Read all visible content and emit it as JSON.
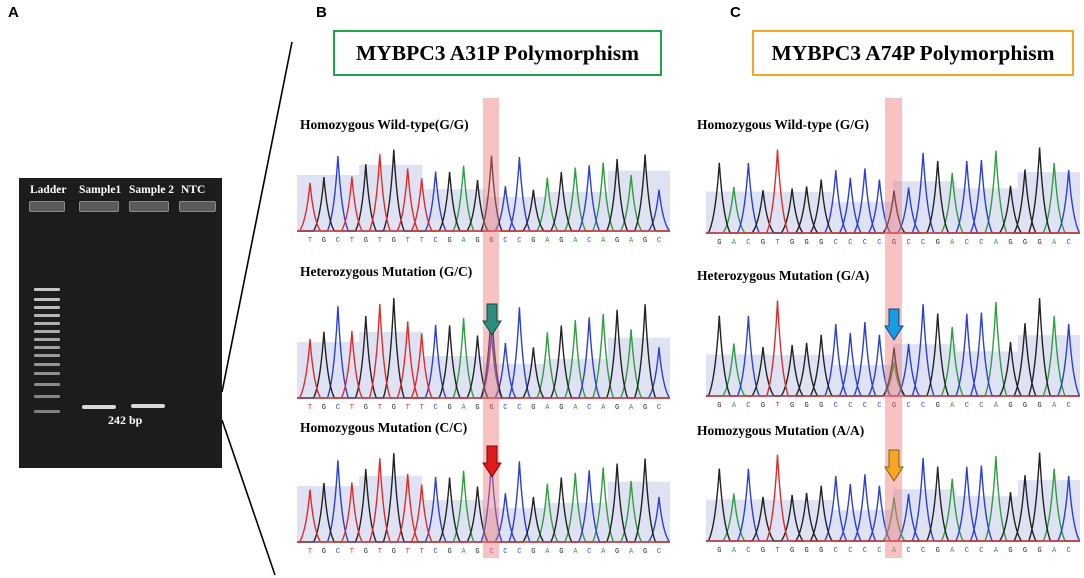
{
  "panels": {
    "a": "A",
    "b": "B",
    "c": "C"
  },
  "gel": {
    "lanes": {
      "ladder": "Ladder",
      "sample1": "Sample1",
      "sample2": "Sample 2",
      "ntc": "NTC"
    },
    "product_size": "242 bp"
  },
  "panel_b": {
    "title": "MYBPC3 A31P Polymorphism",
    "border_color": "#1aa64a",
    "traces": [
      {
        "label": "Homozygous Wild-type(G/G)",
        "sequence": "TGCTGTGTTCGAGGCCGAGACAGAGC",
        "arrow": "none"
      },
      {
        "label": "Heterozygous Mutation (G/C)",
        "sequence": "TGCTGTGTTCGAGGCCGAGACAGAGC",
        "arrow": "teal"
      },
      {
        "label": "Homozygous Mutation (C/C)",
        "sequence": "TGCTGTGTTCGAGCCCGAGACAGAGC",
        "arrow": "red"
      }
    ]
  },
  "panel_c": {
    "title": "MYBPC3 A74P Polymorphism",
    "border_color": "#f5a623",
    "traces": [
      {
        "label": "Homozygous Wild-type (G/G)",
        "sequence": "GACGTGGGCCCCGCCGACCAGGGAC",
        "arrow": "none"
      },
      {
        "label": "Heterozygous Mutation (G/A)",
        "sequence": "GACGTGGGCCCCGCCGACCAGGGAC",
        "arrow": "blue"
      },
      {
        "label": "Homozygous Mutation (A/A)",
        "sequence": "GACGTGGGCCCCACCGACCAGGGAC",
        "arrow": "orange"
      }
    ]
  },
  "colors": {
    "A": "#2e9e3e",
    "C": "#2b3fd6",
    "G": "#222222",
    "T": "#e02a2a",
    "highlight": "#f08080",
    "shading": "#dfe2f3",
    "arrow_teal": "#2a8f7c",
    "arrow_red": "#e01b1b",
    "arrow_blue": "#1a9be0",
    "arrow_orange": "#f5a623"
  }
}
